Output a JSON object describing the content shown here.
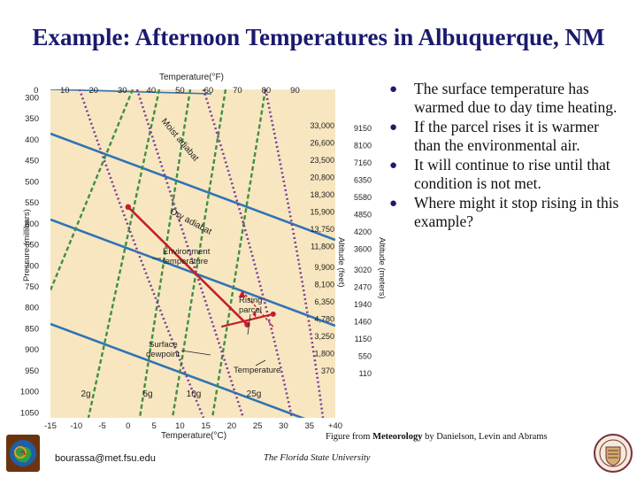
{
  "slide": {
    "title": "Example: Afternoon Temperatures in Albuquerque, NM",
    "bullets": [
      "The surface temperature has warmed due to day time heating.",
      "If the parcel rises it is warmer than the environmental air.",
      "It will continue to rise until that condition is not met.",
      "Where might it stop rising in this example?"
    ],
    "credit_prefix": "Figure from ",
    "credit_book": "Meteorology",
    "credit_suffix": " by Danielson, Levin and Abrams",
    "email": "bourassa@met.fsu.edu",
    "university": "The Florida State University"
  },
  "chart_data": {
    "type": "line",
    "top_axis_label": "Temperature(°F)",
    "top_ticks": [
      "0",
      "10",
      "20",
      "30",
      "40",
      "50",
      "60",
      "70",
      "80",
      "90"
    ],
    "bottom_axis_label": "Temperature(°C)",
    "bottom_ticks": [
      "-15",
      "-10",
      "-5",
      "0",
      "5",
      "10",
      "15",
      "20",
      "25",
      "30",
      "35",
      "+40"
    ],
    "left_axis_label": "Pressure (millibars)",
    "left_ticks": [
      "300",
      "350",
      "400",
      "450",
      "500",
      "550",
      "600",
      "650",
      "700",
      "750",
      "800",
      "850",
      "900",
      "950",
      "1000",
      "1050"
    ],
    "altitude_ft_label": "Altitude (feet)",
    "altitude_m_label": "Altitude (meters)",
    "altitude_ft": [
      "33,000",
      "26,600",
      "23,500",
      "20,800",
      "18,300",
      "15,900",
      "13,750",
      "11,800",
      "9,900",
      "8,100",
      "6,350",
      "4,780",
      "3,250",
      "1,800",
      "370"
    ],
    "altitude_m": [
      "9150",
      "8100",
      "7160",
      "6350",
      "5580",
      "4850",
      "4200",
      "3600",
      "3020",
      "2470",
      "1940",
      "1460",
      "1150",
      "550",
      "110"
    ],
    "mixing_ratio_labels": [
      "2g",
      "5g",
      "10g",
      "25g"
    ],
    "curve_labels": {
      "moist": "Moist adiabat",
      "dry": "Dry adiabat",
      "environment": "Environment temperature",
      "rising": "Rising parcel",
      "dewpoint": "Surface dewpoint",
      "temperature": "Temperature"
    },
    "environment_temperature": [
      [
        0,
        560
      ],
      [
        23,
        840
      ]
    ],
    "surface_dewpoint": [
      [
        18,
        845
      ],
      [
        28,
        815
      ]
    ],
    "rising_parcel": [
      [
        28,
        845
      ],
      [
        22,
        760
      ]
    ],
    "colors": {
      "background": "#f8e6c0",
      "isobar": "#2e74b5",
      "dry_adiabat": "#3e8f46",
      "moist_adiabat": "#7a3e99",
      "environment": "#c41e2a"
    }
  }
}
